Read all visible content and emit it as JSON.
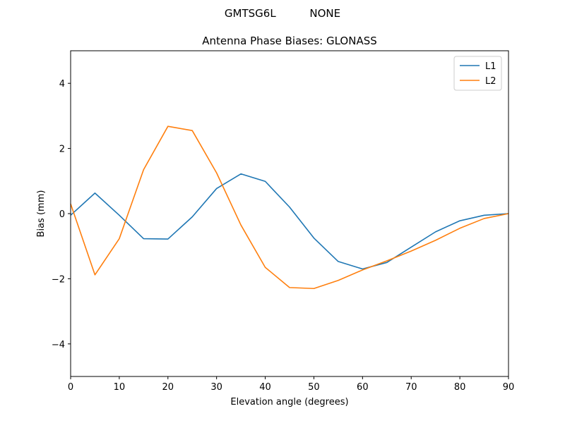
{
  "suptitle": "GMTSG6L          NONE",
  "chart_data": {
    "type": "line",
    "title": "Antenna Phase Biases: GLONASS",
    "xlabel": "Elevation angle (degrees)",
    "ylabel": "Bias (mm)",
    "xlim": [
      0,
      90
    ],
    "ylim": [
      -5,
      5
    ],
    "xticks": [
      0,
      10,
      20,
      30,
      40,
      50,
      60,
      70,
      80,
      90
    ],
    "yticks": [
      -4,
      -2,
      0,
      2,
      4
    ],
    "ytick_labels": [
      "−4",
      "−2",
      "0",
      "2",
      "4"
    ],
    "legend_position": "top-right",
    "grid": false,
    "x": [
      0,
      5,
      10,
      15,
      20,
      25,
      30,
      35,
      40,
      45,
      50,
      55,
      60,
      65,
      70,
      75,
      80,
      85,
      90
    ],
    "series": [
      {
        "name": "L1",
        "color": "#1f77b4",
        "values": [
          -0.05,
          0.63,
          -0.05,
          -0.77,
          -0.78,
          -0.1,
          0.77,
          1.22,
          0.99,
          0.2,
          -0.75,
          -1.47,
          -1.7,
          -1.5,
          -1.03,
          -0.56,
          -0.22,
          -0.05,
          0.0
        ]
      },
      {
        "name": "L2",
        "color": "#ff7f0e",
        "values": [
          0.3,
          -1.88,
          -0.77,
          1.35,
          2.68,
          2.55,
          1.25,
          -0.35,
          -1.65,
          -2.27,
          -2.3,
          -2.05,
          -1.73,
          -1.45,
          -1.15,
          -0.82,
          -0.45,
          -0.15,
          0.0
        ]
      }
    ]
  }
}
